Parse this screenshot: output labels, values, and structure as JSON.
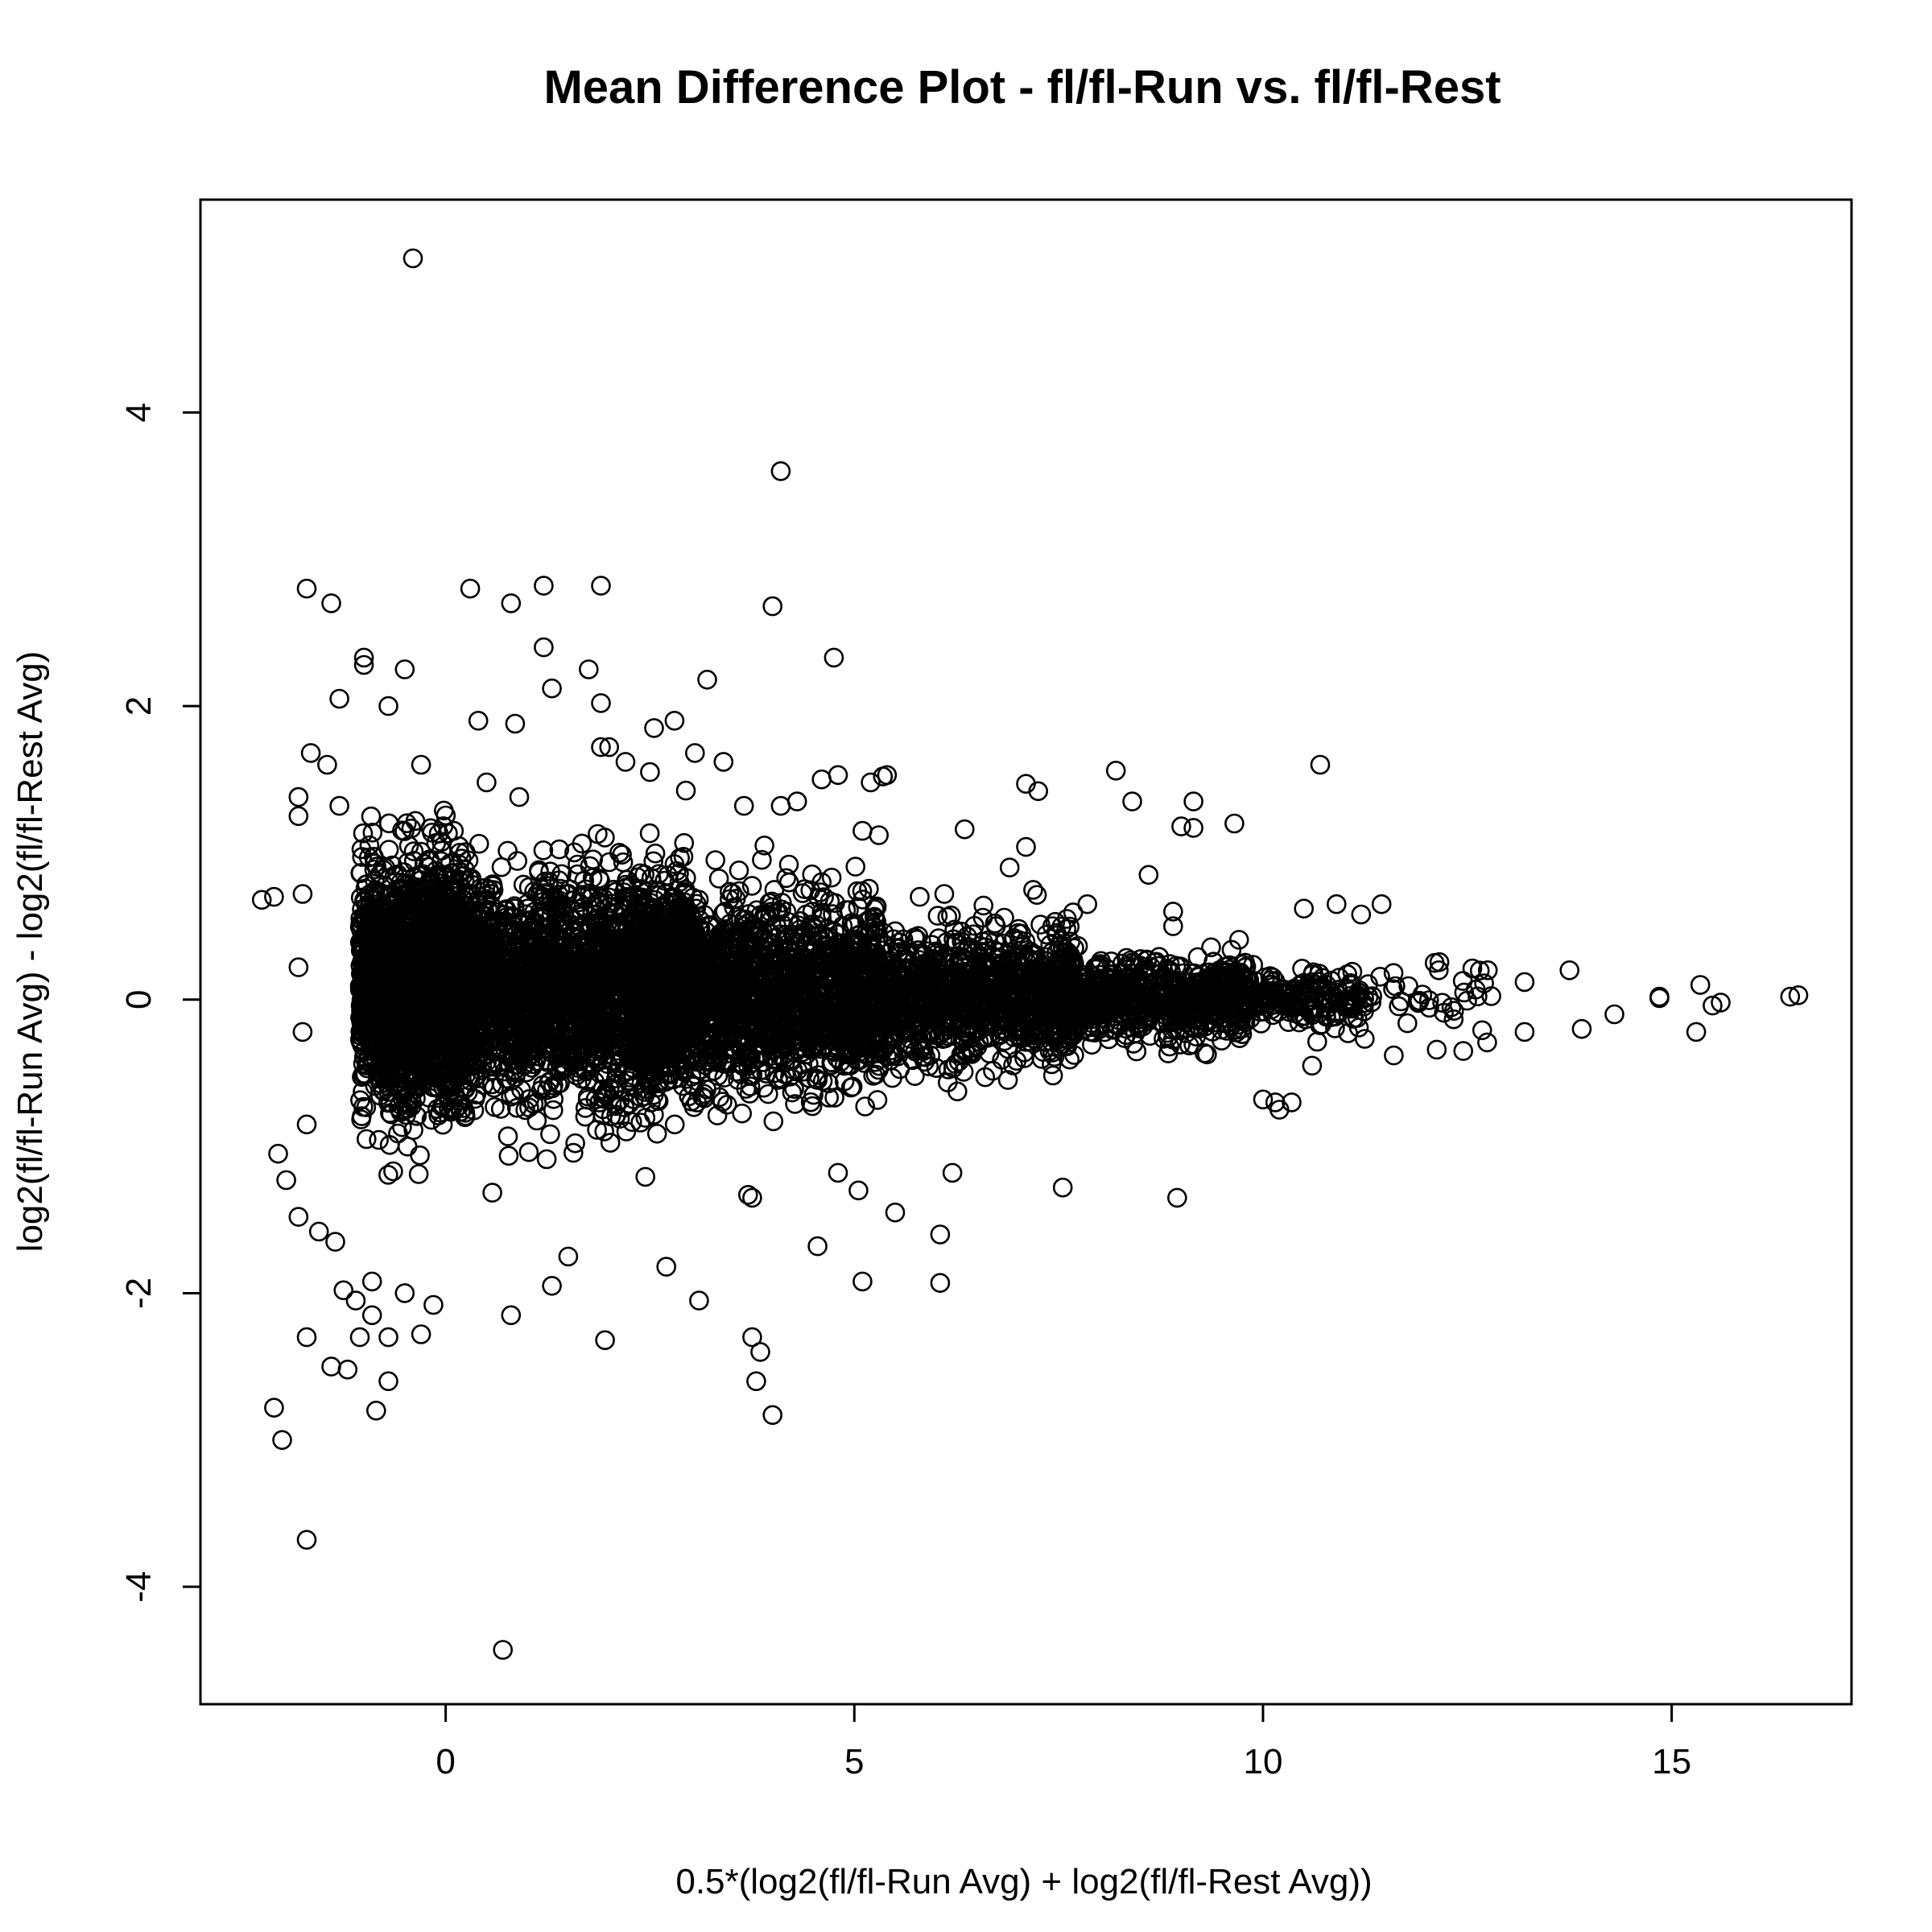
{
  "chart_data": {
    "type": "scatter",
    "title": "Mean Difference Plot - fl/fl-Run vs. fl/fl-Rest",
    "xlabel": "0.5*(log2(fl/fl-Run Avg) + log2(fl/fl-Rest Avg))",
    "ylabel": "log2(fl/fl-Run Avg) - log2(fl/fl-Rest Avg)",
    "xlim": [
      -3.0,
      17.2
    ],
    "ylim": [
      -4.8,
      5.45
    ],
    "x_ticks": [
      0,
      5,
      10,
      15
    ],
    "x_tick_labels": [
      "0",
      "5",
      "10",
      "15"
    ],
    "y_ticks": [
      -4,
      -2,
      0,
      2,
      4
    ],
    "y_tick_labels": [
      "-4",
      "-2",
      "0",
      "2",
      "4"
    ],
    "marker": "open-circle",
    "grid": false,
    "legend": "none",
    "point_color": "#000000",
    "points": [
      [
        -0.4,
        5.05
      ],
      [
        4.1,
        3.6
      ],
      [
        4.0,
        2.68
      ],
      [
        -1.7,
        2.8
      ],
      [
        -1.4,
        2.7
      ],
      [
        0.3,
        2.8
      ],
      [
        0.8,
        2.7
      ],
      [
        1.2,
        2.82
      ],
      [
        1.9,
        2.82
      ],
      [
        4.75,
        2.33
      ],
      [
        -1.0,
        2.33
      ],
      [
        -1.0,
        2.28
      ],
      [
        -0.5,
        2.25
      ],
      [
        1.2,
        2.4
      ],
      [
        1.3,
        2.12
      ],
      [
        1.75,
        2.25
      ],
      [
        3.2,
        2.18
      ],
      [
        2.8,
        1.9
      ],
      [
        2.55,
        1.85
      ],
      [
        1.9,
        2.02
      ],
      [
        0.85,
        1.88
      ],
      [
        0.4,
        1.9
      ],
      [
        -1.3,
        2.05
      ],
      [
        -0.7,
        2.0
      ],
      [
        1.9,
        1.72
      ],
      [
        2.0,
        1.72
      ],
      [
        3.05,
        1.68
      ],
      [
        3.4,
        1.62
      ],
      [
        5.4,
        1.53
      ],
      [
        5.35,
        1.52
      ],
      [
        4.8,
        1.53
      ],
      [
        4.6,
        1.5
      ],
      [
        5.2,
        1.48
      ],
      [
        8.2,
        1.56
      ],
      [
        10.7,
        1.6
      ],
      [
        7.1,
        1.47
      ],
      [
        7.25,
        1.42
      ],
      [
        8.4,
        1.35
      ],
      [
        9.15,
        1.35
      ],
      [
        9.0,
        1.18
      ],
      [
        9.15,
        1.17
      ],
      [
        9.65,
        1.2
      ],
      [
        6.35,
        1.16
      ],
      [
        5.1,
        1.15
      ],
      [
        5.3,
        1.12
      ],
      [
        7.1,
        1.04
      ],
      [
        4.1,
        1.32
      ],
      [
        4.3,
        1.35
      ],
      [
        3.65,
        1.32
      ],
      [
        -1.8,
        1.38
      ],
      [
        -1.8,
        1.25
      ],
      [
        -1.3,
        1.32
      ],
      [
        -1.45,
        1.6
      ],
      [
        -1.65,
        1.68
      ],
      [
        -0.3,
        1.6
      ],
      [
        2.2,
        1.62
      ],
      [
        2.5,
        1.55
      ],
      [
        0.9,
        1.38
      ],
      [
        0.5,
        1.48
      ],
      [
        -2.25,
        0.68
      ],
      [
        -2.1,
        0.7
      ],
      [
        -1.75,
        0.72
      ],
      [
        -1.8,
        0.22
      ],
      [
        -1.75,
        -0.22
      ],
      [
        -2.05,
        -1.05
      ],
      [
        -1.7,
        -0.85
      ],
      [
        -1.95,
        -1.23
      ],
      [
        -1.8,
        -1.48
      ],
      [
        -1.55,
        -1.58
      ],
      [
        -1.35,
        -1.65
      ],
      [
        -1.25,
        -1.98
      ],
      [
        -1.1,
        -2.05
      ],
      [
        -0.9,
        -1.92
      ],
      [
        -0.9,
        -2.15
      ],
      [
        -1.05,
        -2.3
      ],
      [
        -0.7,
        -2.3
      ],
      [
        -0.5,
        -2.0
      ],
      [
        -0.3,
        -2.28
      ],
      [
        -0.15,
        -2.08
      ],
      [
        -1.7,
        -2.3
      ],
      [
        -1.4,
        -2.5
      ],
      [
        -1.2,
        -2.52
      ],
      [
        -0.7,
        -2.6
      ],
      [
        -0.85,
        -2.8
      ],
      [
        -2.1,
        -2.78
      ],
      [
        -2.0,
        -3.0
      ],
      [
        -1.7,
        -3.68
      ],
      [
        0.7,
        -4.43
      ],
      [
        0.8,
        -2.15
      ],
      [
        1.95,
        -2.32
      ],
      [
        3.1,
        -2.05
      ],
      [
        2.7,
        -1.82
      ],
      [
        1.5,
        -1.75
      ],
      [
        1.3,
        -1.95
      ],
      [
        3.75,
        -2.3
      ],
      [
        3.85,
        -2.4
      ],
      [
        3.8,
        -2.6
      ],
      [
        4.0,
        -2.83
      ],
      [
        4.55,
        -1.68
      ],
      [
        5.1,
        -1.92
      ],
      [
        6.05,
        -1.93
      ],
      [
        6.05,
        -1.6
      ],
      [
        8.95,
        -1.35
      ],
      [
        7.55,
        -1.28
      ],
      [
        6.2,
        -1.18
      ],
      [
        5.5,
        -1.45
      ],
      [
        3.75,
        -1.35
      ],
      [
        3.7,
        -1.33
      ],
      [
        4.8,
        -1.18
      ],
      [
        5.05,
        -1.3
      ],
      [
        10.0,
        -0.68
      ],
      [
        10.15,
        -0.7
      ],
      [
        10.2,
        -0.75
      ],
      [
        10.35,
        -0.7
      ],
      [
        10.6,
        -0.45
      ],
      [
        11.6,
        -0.38
      ],
      [
        12.45,
        -0.35
      ],
      [
        13.2,
        -0.22
      ],
      [
        13.9,
        -0.2
      ],
      [
        14.3,
        -0.1
      ],
      [
        15.3,
        -0.22
      ],
      [
        15.5,
        -0.04
      ],
      [
        15.6,
        -0.02
      ],
      [
        16.45,
        0.02
      ],
      [
        16.55,
        0.03
      ],
      [
        14.85,
        0.01
      ],
      [
        14.85,
        0.02
      ],
      [
        15.35,
        0.1
      ],
      [
        13.75,
        0.2
      ],
      [
        12.75,
        0.2
      ],
      [
        13.2,
        0.12
      ],
      [
        12.1,
        0.25
      ],
      [
        12.15,
        0.2
      ],
      [
        11.45,
        0.65
      ],
      [
        11.2,
        0.58
      ],
      [
        10.9,
        0.65
      ],
      [
        10.5,
        0.62
      ],
      [
        8.9,
        0.6
      ],
      [
        8.9,
        0.5
      ],
      [
        8.6,
        0.85
      ],
      [
        7.85,
        0.65
      ],
      [
        7.6,
        0.55
      ],
      [
        6.9,
        0.9
      ],
      [
        6.1,
        0.72
      ],
      [
        5.8,
        0.7
      ],
      [
        4.6,
        0.8
      ],
      [
        4.2,
        0.92
      ],
      [
        3.9,
        1.05
      ],
      [
        3.3,
        0.95
      ],
      [
        0.1,
        1.15
      ]
    ],
    "cloud": [
      {
        "x": -0.4,
        "y": 0.12,
        "n": 1800,
        "x_spread": 0.65,
        "y_sd": 0.4
      },
      {
        "x": 1.5,
        "y": 0.08,
        "n": 2400,
        "x_spread": 1.6,
        "y_sd": 0.36
      },
      {
        "x": 3.8,
        "y": 0.05,
        "n": 1700,
        "x_spread": 1.5,
        "y_sd": 0.3
      },
      {
        "x": 6.3,
        "y": 0.02,
        "n": 1100,
        "x_spread": 1.4,
        "y_sd": 0.22
      },
      {
        "x": 8.6,
        "y": 0.0,
        "n": 650,
        "x_spread": 1.2,
        "y_sd": 0.14
      },
      {
        "x": 10.5,
        "y": 0.0,
        "n": 200,
        "x_spread": 0.8,
        "y_sd": 0.09
      },
      {
        "x": 12.0,
        "y": 0.0,
        "n": 35,
        "x_spread": 0.8,
        "y_sd": 0.13
      }
    ]
  }
}
